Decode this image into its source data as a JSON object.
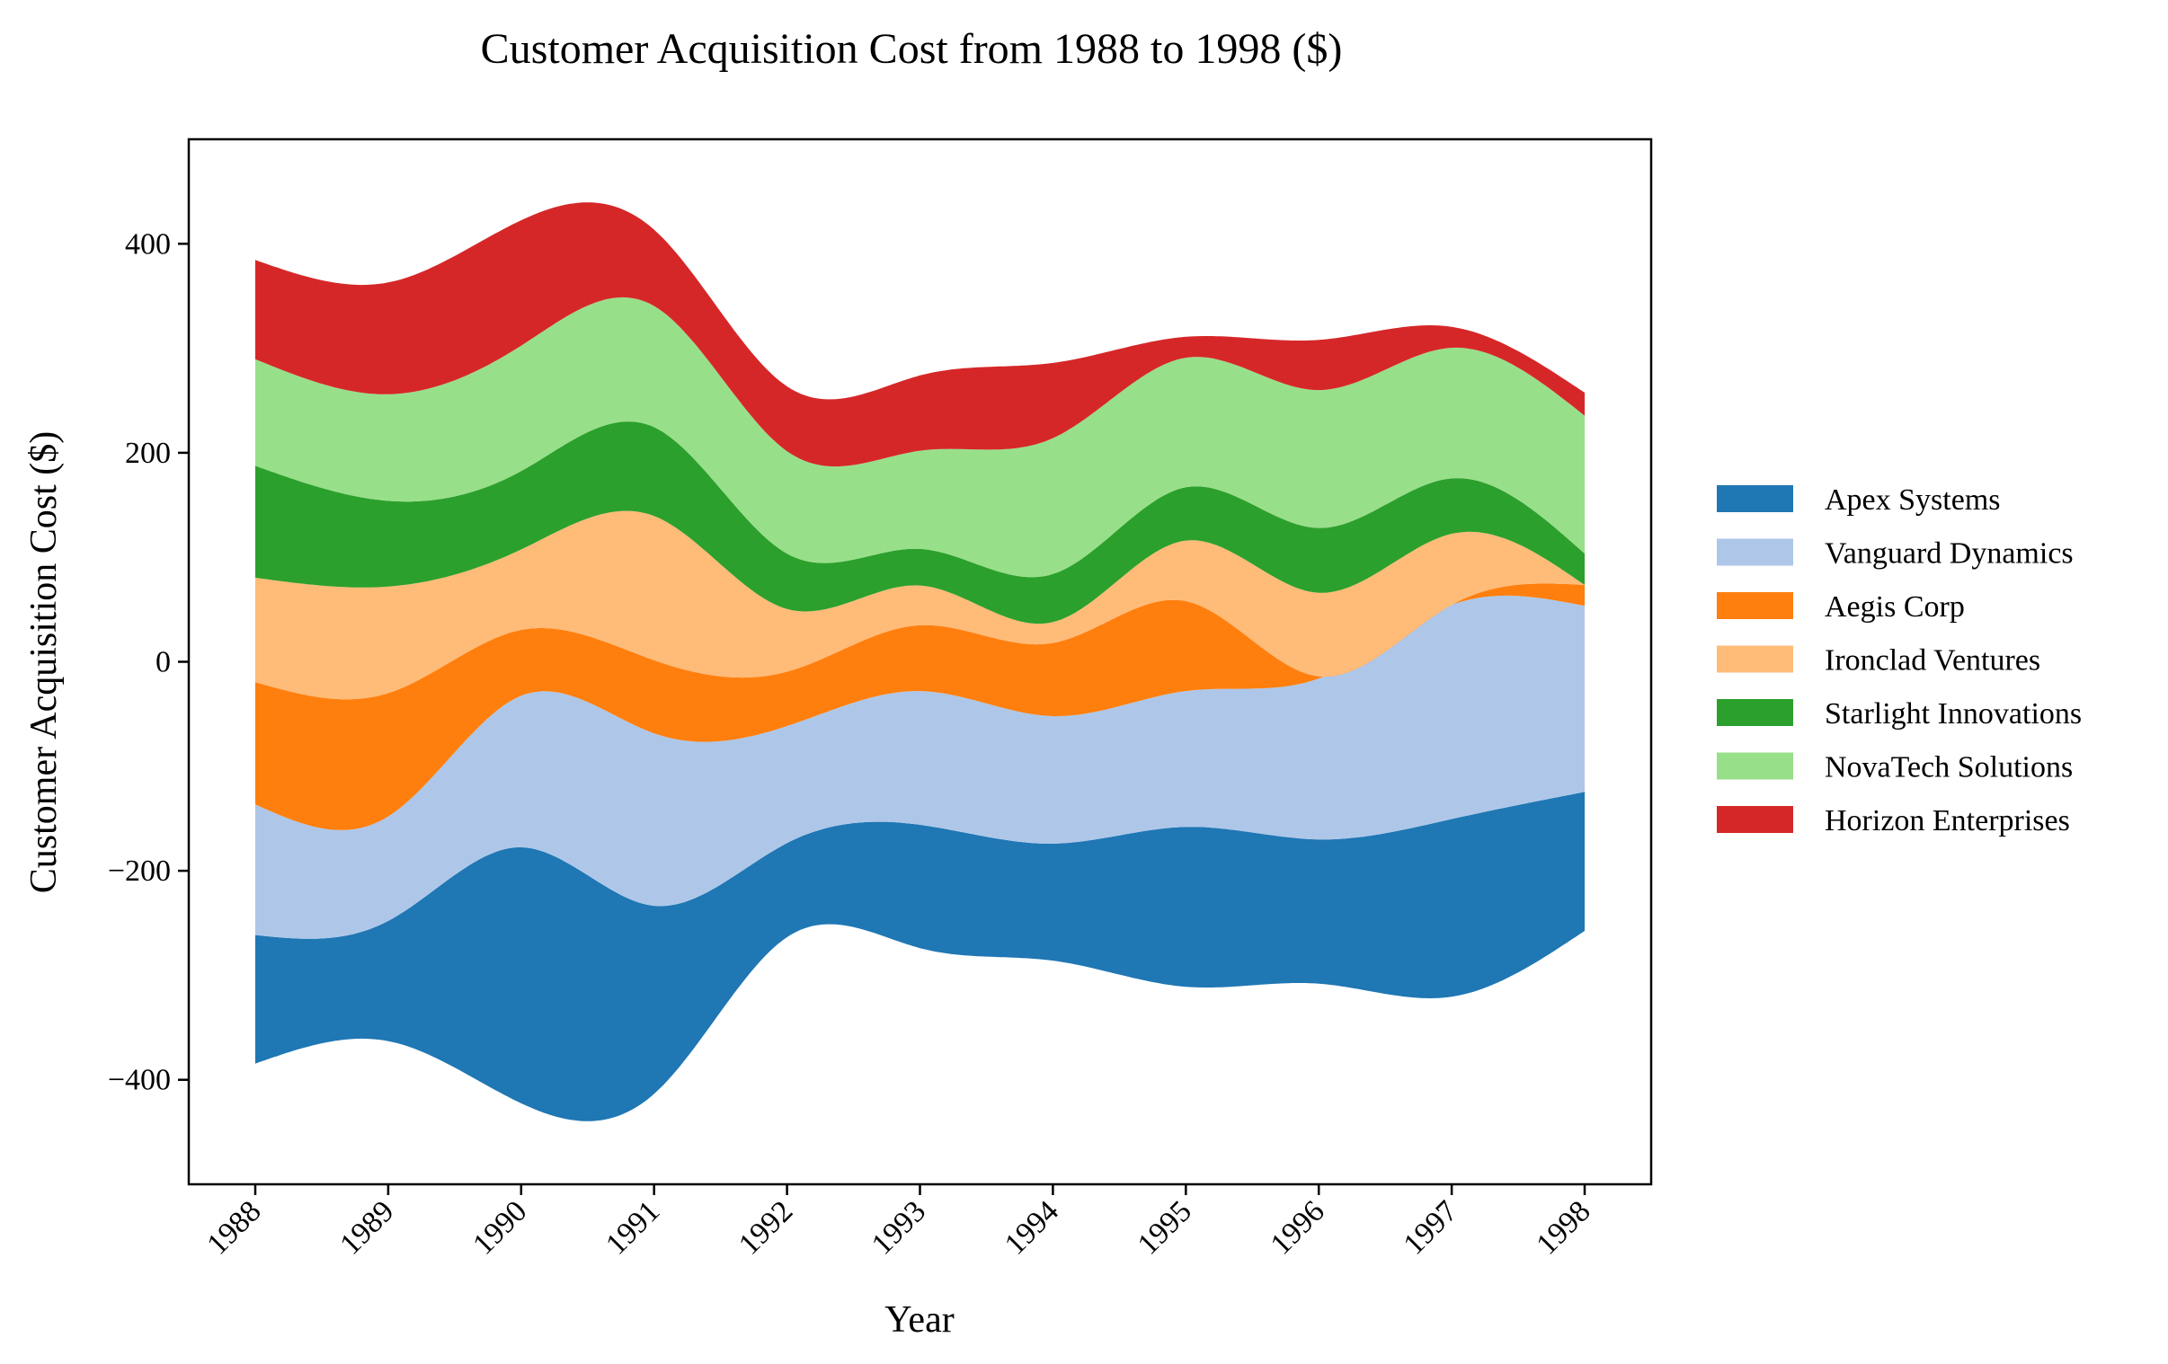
{
  "chart_data": {
    "type": "area",
    "subtype": "streamgraph",
    "title": "Customer Acquisition Cost from 1988 to 1998 ($)",
    "xlabel": "Year",
    "ylabel": "Customer Acquisition Cost ($)",
    "x": [
      1988,
      1989,
      1990,
      1991,
      1992,
      1993,
      1994,
      1995,
      1996,
      1997,
      1998
    ],
    "x_tick_labels": [
      "1988",
      "1989",
      "1990",
      "1991",
      "1992",
      "1993",
      "1994",
      "1995",
      "1996",
      "1997",
      "1998"
    ],
    "ylim": [
      -500,
      500
    ],
    "y_ticks": [
      400,
      200,
      0,
      -200,
      -400
    ],
    "y_tick_labels": [
      "400",
      "200",
      "0",
      "−200",
      "−400"
    ],
    "baseline": "symmetric",
    "grid": false,
    "legend_position": "right",
    "series": [
      {
        "name": "Apex Systems",
        "color": "#1f77b4",
        "values": [
          123,
          115,
          245,
          180,
          90,
          118,
          112,
          153,
          138,
          170,
          133
        ]
      },
      {
        "name": "Vanguard Dynamics",
        "color": "#aec7e8",
        "values": [
          125,
          100,
          145,
          165,
          112,
          128,
          122,
          130,
          154,
          205,
          178
        ]
      },
      {
        "name": "Aegis Corp",
        "color": "#ff7f0e",
        "values": [
          117,
          118,
          63,
          70,
          52,
          63,
          70,
          86,
          2,
          0,
          20
        ]
      },
      {
        "name": "Ironclad Ventures",
        "color": "#ffbb78",
        "values": [
          100,
          102,
          77,
          138,
          60,
          38,
          20,
          58,
          80,
          68,
          0
        ]
      },
      {
        "name": "Starlight Innovations",
        "color": "#2ca02c",
        "values": [
          107,
          82,
          75,
          85,
          53,
          35,
          46,
          51,
          62,
          53,
          30
        ]
      },
      {
        "name": "NovaTech Solutions",
        "color": "#98df8a",
        "values": [
          102,
          102,
          120,
          116,
          98,
          94,
          130,
          124,
          132,
          125,
          132
        ]
      },
      {
        "name": "Horizon Enterprises",
        "color": "#d62728",
        "values": [
          95,
          107,
          120,
          73,
          62,
          72,
          72,
          20,
          48,
          20,
          22
        ]
      }
    ]
  }
}
